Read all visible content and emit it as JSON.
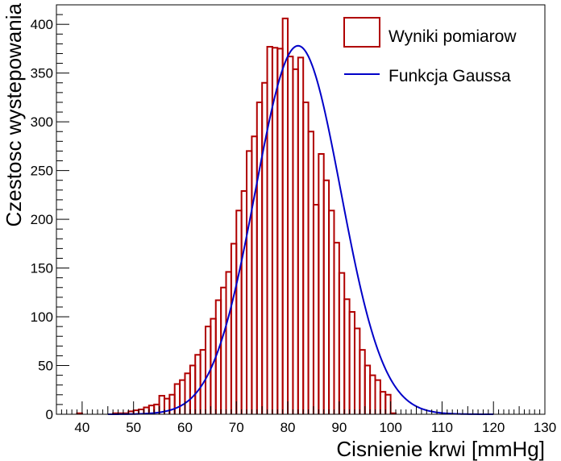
{
  "chart_data": {
    "type": "bar",
    "xlabel": "Cisnienie krwi [mmHg]",
    "ylabel": "Czestosc wystepowania",
    "xlim": [
      35,
      130
    ],
    "ylim": [
      0,
      420
    ],
    "x_ticks": [
      40,
      50,
      60,
      70,
      80,
      90,
      100,
      110,
      120,
      130
    ],
    "y_ticks": [
      0,
      50,
      100,
      150,
      200,
      250,
      300,
      350,
      400
    ],
    "bin_width": 1,
    "legend_position": "top-right",
    "grid": false,
    "series": [
      {
        "name": "Wyniki pomiarow",
        "kind": "histogram",
        "color": "#b00000",
        "bin_starts": [
          38,
          39,
          40,
          41,
          42,
          43,
          44,
          45,
          46,
          47,
          48,
          49,
          50,
          51,
          52,
          53,
          54,
          55,
          56,
          57,
          58,
          59,
          60,
          61,
          62,
          63,
          64,
          65,
          66,
          67,
          68,
          69,
          70,
          71,
          72,
          73,
          74,
          75,
          76,
          77,
          78,
          79,
          80,
          81,
          82,
          83,
          84,
          85,
          86,
          87,
          88,
          89,
          90,
          91,
          92,
          93,
          94,
          95,
          96,
          97,
          98,
          99,
          100,
          101,
          102,
          103,
          104,
          105,
          106,
          107,
          108,
          109,
          110,
          111,
          112,
          113,
          114,
          115,
          116,
          117,
          118,
          119,
          120,
          121,
          122,
          123,
          124,
          125,
          126,
          127,
          128,
          129
        ],
        "values": [
          0,
          1,
          0,
          0,
          0,
          0,
          0,
          0,
          1,
          1,
          1,
          3,
          4,
          5,
          7,
          9,
          10,
          19,
          16,
          20,
          31,
          35,
          42,
          50,
          61,
          66,
          90,
          98,
          117,
          130,
          146,
          175,
          209,
          229,
          270,
          285,
          320,
          340,
          377,
          376,
          375,
          406,
          367,
          354,
          366,
          320,
          290,
          215,
          267,
          240,
          209,
          176,
          145,
          118,
          105,
          88,
          66,
          50,
          40,
          35,
          23,
          20,
          1,
          0,
          0,
          0,
          0,
          0,
          0,
          0,
          0,
          0,
          0,
          0,
          0,
          0,
          0,
          0,
          0,
          0,
          0,
          0,
          0,
          0,
          0,
          0,
          0,
          0,
          0,
          0,
          0,
          0
        ]
      },
      {
        "name": "Funkcja Gaussa",
        "kind": "gaussian",
        "color": "#0000c8",
        "amplitude": 378,
        "mean": 82,
        "sigma": 8.3
      }
    ]
  }
}
